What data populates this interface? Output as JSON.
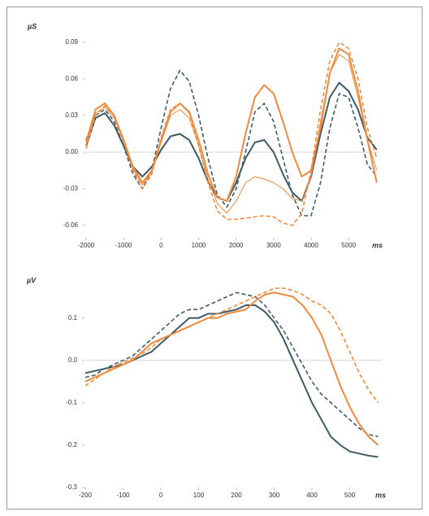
{
  "chart_data": [
    {
      "type": "line",
      "y_label": "µS",
      "x_label": "ms",
      "xlim": [
        -2000,
        5800
      ],
      "xticks": [
        -2000,
        -1000,
        0,
        1000,
        2000,
        3000,
        4000,
        5000
      ],
      "ylim": [
        -0.07,
        0.1
      ],
      "yticks": [
        0.09,
        0.06,
        0.03,
        {
          "value": 0,
          "label": "0.00"
        },
        -0.03,
        -0.06
      ],
      "x": [
        -2000,
        -1750,
        -1500,
        -1250,
        -1000,
        -750,
        -500,
        -250,
        0,
        250,
        500,
        750,
        1000,
        1250,
        1500,
        1750,
        2000,
        2250,
        2500,
        2750,
        3000,
        3250,
        3500,
        3750,
        4000,
        4250,
        4500,
        4750,
        5000,
        5250,
        5500,
        5750
      ],
      "series": [
        {
          "color": "#3e5b68",
          "dash": "solid",
          "values": [
            0.005,
            0.028,
            0.032,
            0.022,
            0.005,
            -0.012,
            -0.02,
            -0.012,
            0.002,
            0.013,
            0.015,
            0.01,
            -0.005,
            -0.024,
            -0.037,
            -0.04,
            -0.025,
            -0.005,
            0.008,
            0.01,
            0,
            -0.018,
            -0.033,
            -0.04,
            -0.02,
            0.015,
            0.045,
            0.057,
            0.05,
            0.035,
            0.012,
            0.002
          ]
        },
        {
          "color": "#3e5b68",
          "dash": "dashed",
          "values": [
            0.01,
            0.03,
            0.035,
            0.025,
            0.005,
            -0.018,
            -0.03,
            -0.015,
            0.02,
            0.052,
            0.067,
            0.058,
            0.03,
            -0.005,
            -0.035,
            -0.045,
            -0.03,
            0,
            0.033,
            0.04,
            0.025,
            -0.005,
            -0.035,
            -0.052,
            -0.052,
            -0.025,
            0.02,
            0.048,
            0.045,
            0.02,
            -0.01,
            -0.02
          ]
        },
        {
          "color": "#f08a3c",
          "dash": "solid",
          "values": [
            0.008,
            0.035,
            0.04,
            0.03,
            0.01,
            -0.012,
            -0.025,
            -0.015,
            0.01,
            0.033,
            0.04,
            0.033,
            0.01,
            -0.018,
            -0.037,
            -0.04,
            -0.02,
            0.015,
            0.045,
            0.055,
            0.048,
            0.025,
            0,
            -0.02,
            -0.015,
            0.02,
            0.065,
            0.085,
            0.08,
            0.05,
            0.01,
            -0.025
          ]
        },
        {
          "color": "#f08a3c",
          "dash": "dashed",
          "values": [
            0.003,
            0.03,
            0.038,
            0.03,
            0.01,
            -0.015,
            -0.03,
            -0.018,
            0.012,
            0.035,
            0.04,
            0.032,
            0.005,
            -0.025,
            -0.048,
            -0.055,
            -0.055,
            -0.054,
            -0.053,
            -0.052,
            -0.053,
            -0.058,
            -0.06,
            -0.05,
            -0.015,
            0.035,
            0.075,
            0.09,
            0.085,
            0.06,
            0.02,
            -0.005
          ]
        },
        {
          "color": "#f08a3c",
          "dash": "thin",
          "values": [
            0.005,
            0.032,
            0.037,
            0.028,
            0.008,
            -0.014,
            -0.027,
            -0.017,
            0.008,
            0.03,
            0.035,
            0.028,
            0.005,
            -0.022,
            -0.042,
            -0.05,
            -0.04,
            -0.025,
            -0.02,
            -0.022,
            -0.025,
            -0.03,
            -0.038,
            -0.04,
            -0.02,
            0.025,
            0.065,
            0.08,
            0.075,
            0.045,
            0.01,
            -0.015
          ]
        }
      ]
    },
    {
      "type": "line",
      "y_label": "µV",
      "x_label": "ms",
      "xlim": [
        -200,
        585
      ],
      "xticks": [
        -200,
        -100,
        0,
        100,
        200,
        300,
        400,
        500
      ],
      "ylim": [
        -0.3,
        0.18
      ],
      "yticks": [
        0.1,
        {
          "value": 0,
          "label": "0.0"
        },
        -0.1,
        -0.2,
        -0.3
      ],
      "x": [
        -200,
        -175,
        -150,
        -125,
        -100,
        -75,
        -50,
        -25,
        0,
        25,
        50,
        75,
        100,
        125,
        150,
        175,
        200,
        225,
        250,
        275,
        300,
        325,
        350,
        375,
        400,
        425,
        450,
        475,
        500,
        525,
        550,
        575
      ],
      "series": [
        {
          "color": "#3e5b68",
          "dash": "solid",
          "values": [
            -0.03,
            -0.025,
            -0.02,
            -0.015,
            -0.01,
            0,
            0.01,
            0.02,
            0.04,
            0.06,
            0.08,
            0.1,
            0.1,
            0.11,
            0.11,
            0.115,
            0.12,
            0.13,
            0.13,
            0.115,
            0.09,
            0.05,
            0,
            -0.05,
            -0.1,
            -0.14,
            -0.18,
            -0.2,
            -0.215,
            -0.22,
            -0.225,
            -0.228
          ]
        },
        {
          "color": "#3e5b68",
          "dash": "dashed",
          "values": [
            -0.04,
            -0.035,
            -0.02,
            -0.01,
            0,
            0.01,
            0.03,
            0.05,
            0.07,
            0.09,
            0.11,
            0.12,
            0.12,
            0.13,
            0.14,
            0.15,
            0.16,
            0.155,
            0.15,
            0.13,
            0.1,
            0.07,
            0.03,
            -0.01,
            -0.05,
            -0.08,
            -0.1,
            -0.12,
            -0.14,
            -0.16,
            -0.175,
            -0.18
          ]
        },
        {
          "color": "#f08a3c",
          "dash": "solid",
          "values": [
            -0.05,
            -0.04,
            -0.03,
            -0.02,
            -0.01,
            0,
            0.02,
            0.04,
            0.05,
            0.06,
            0.07,
            0.08,
            0.09,
            0.1,
            0.1,
            0.11,
            0.115,
            0.12,
            0.14,
            0.155,
            0.16,
            0.155,
            0.15,
            0.13,
            0.1,
            0.06,
            0,
            -0.06,
            -0.11,
            -0.15,
            -0.18,
            -0.2
          ]
        },
        {
          "color": "#f08a3c",
          "dash": "dashed",
          "values": [
            -0.06,
            -0.045,
            -0.03,
            -0.015,
            -0.005,
            0.005,
            0.015,
            0.03,
            0.05,
            0.06,
            0.07,
            0.08,
            0.09,
            0.1,
            0.11,
            0.12,
            0.13,
            0.14,
            0.15,
            0.16,
            0.17,
            0.17,
            0.165,
            0.155,
            0.14,
            0.13,
            0.11,
            0.07,
            0.02,
            -0.03,
            -0.07,
            -0.1
          ]
        }
      ]
    }
  ]
}
